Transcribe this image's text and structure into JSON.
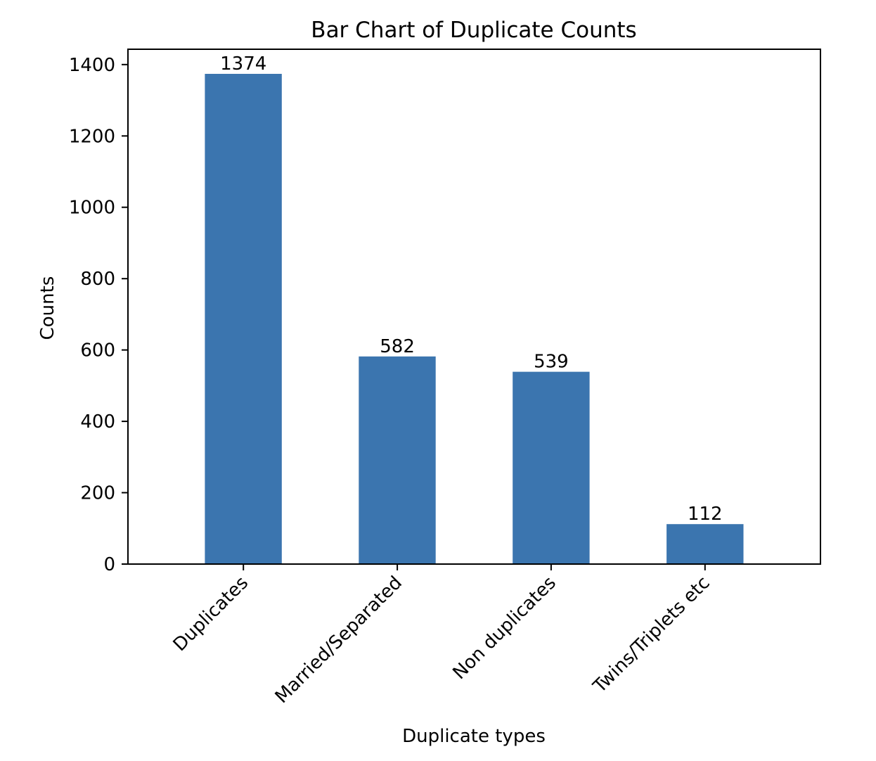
{
  "chart_data": {
    "type": "bar",
    "title": "Bar Chart of Duplicate Counts",
    "xlabel": "Duplicate types",
    "ylabel": "Counts",
    "categories": [
      "Duplicates",
      "Married/Separated",
      "Non duplicates",
      "Twins/Triplets etc"
    ],
    "values": [
      1374,
      582,
      539,
      112
    ],
    "data_labels": [
      "1374",
      "582",
      "539",
      "112"
    ],
    "yticks": [
      0,
      200,
      400,
      600,
      800,
      1000,
      1200,
      1400
    ],
    "ylim": [
      0,
      1443
    ],
    "bar_color": "#3b75af",
    "grid": false,
    "legend": "none"
  }
}
